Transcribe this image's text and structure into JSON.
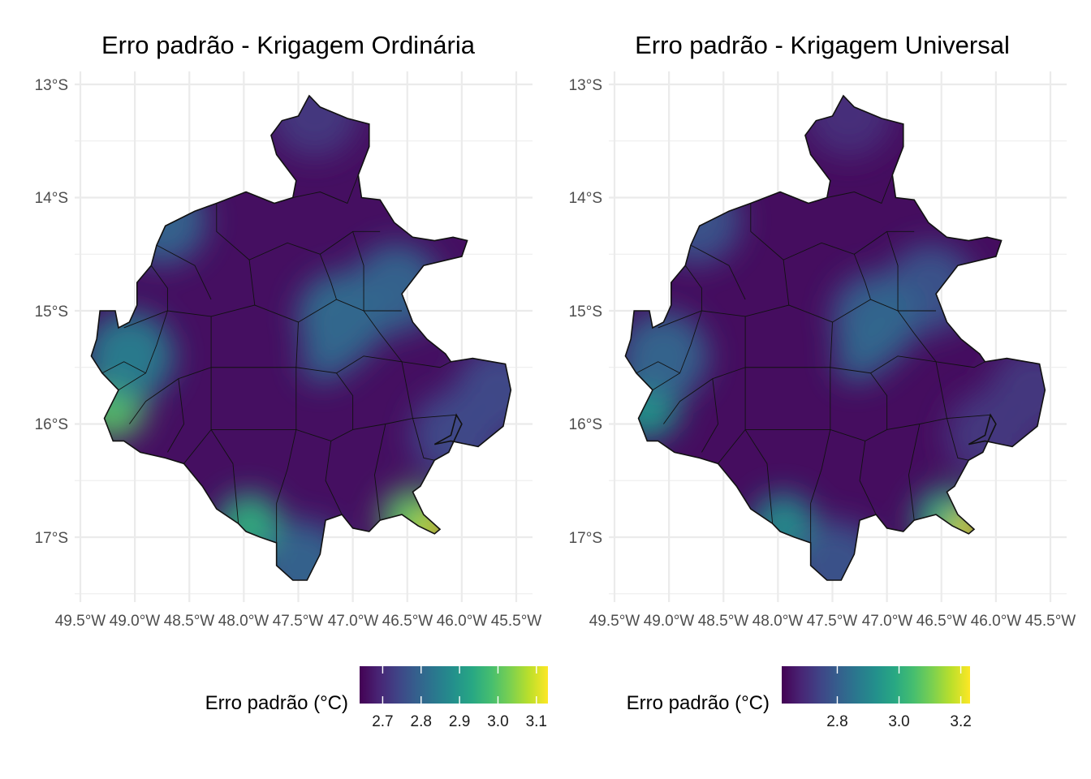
{
  "panels": [
    {
      "title": "Erro padrão - Krigagem Ordinária",
      "legend": {
        "title": "Erro padrão (°C)",
        "breaks": [
          "2.7",
          "2.8",
          "2.9",
          "3.0",
          "3.1"
        ],
        "break_values": [
          2.7,
          2.8,
          2.9,
          3.0,
          3.1
        ],
        "range": [
          2.64,
          3.13
        ]
      },
      "hotspots": [
        {
          "lon": -49.2,
          "lat": -15.85,
          "value": 3.0
        },
        {
          "lon": -49.05,
          "lat": -15.4,
          "value": 2.85
        },
        {
          "lon": -48.75,
          "lat": -14.2,
          "value": 2.8
        },
        {
          "lon": -47.95,
          "lat": -16.9,
          "value": 2.95
        },
        {
          "lon": -47.45,
          "lat": -17.25,
          "value": 2.8
        },
        {
          "lon": -47.1,
          "lat": -15.05,
          "value": 2.82
        },
        {
          "lon": -46.6,
          "lat": -14.8,
          "value": 2.8
        },
        {
          "lon": -46.45,
          "lat": -16.85,
          "value": 3.0
        },
        {
          "lon": -46.25,
          "lat": -16.95,
          "value": 3.1
        },
        {
          "lon": -45.65,
          "lat": -15.7,
          "value": 2.75
        },
        {
          "lon": -46.05,
          "lat": -16.1,
          "value": 2.75
        },
        {
          "lon": -47.35,
          "lat": -13.25,
          "value": 2.72
        }
      ]
    },
    {
      "title": "Erro padrão - Krigagem Universal",
      "legend": {
        "title": "Erro padrão (°C)",
        "breaks": [
          "2.8",
          "3.0",
          "3.2"
        ],
        "break_values": [
          2.8,
          3.0,
          3.2
        ],
        "range": [
          2.62,
          3.23
        ]
      },
      "hotspots": [
        {
          "lon": -49.2,
          "lat": -15.85,
          "value": 2.95
        },
        {
          "lon": -49.05,
          "lat": -15.4,
          "value": 2.82
        },
        {
          "lon": -48.75,
          "lat": -14.2,
          "value": 2.78
        },
        {
          "lon": -47.95,
          "lat": -16.9,
          "value": 2.92
        },
        {
          "lon": -47.45,
          "lat": -17.25,
          "value": 2.78
        },
        {
          "lon": -47.1,
          "lat": -15.05,
          "value": 2.8
        },
        {
          "lon": -46.6,
          "lat": -14.8,
          "value": 2.78
        },
        {
          "lon": -46.45,
          "lat": -16.85,
          "value": 3.0
        },
        {
          "lon": -46.25,
          "lat": -16.95,
          "value": 3.2
        },
        {
          "lon": -45.65,
          "lat": -15.7,
          "value": 2.72
        },
        {
          "lon": -46.05,
          "lat": -16.1,
          "value": 2.72
        },
        {
          "lon": -47.35,
          "lat": -13.25,
          "value": 2.7
        }
      ]
    }
  ],
  "axes": {
    "y_labels": [
      "13°S",
      "14°S",
      "15°S",
      "16°S",
      "17°S"
    ],
    "y_values": [
      -13,
      -14,
      -15,
      -16,
      -17
    ],
    "x_labels": [
      "49.5°W",
      "49.0°W",
      "48.5°W",
      "48.0°W",
      "47.5°W",
      "47.0°W",
      "46.5°W",
      "46.0°W",
      "45.5°W"
    ],
    "x_values": [
      -49.5,
      -49.0,
      -48.5,
      -48.0,
      -47.5,
      -47.0,
      -46.5,
      -46.0,
      -45.5
    ],
    "lon_range": [
      -49.5,
      -45.5
    ],
    "lat_range": [
      -17.5,
      -13.0
    ]
  },
  "region_outline": [
    [
      -47.4,
      -13.1
    ],
    [
      -47.3,
      -13.2
    ],
    [
      -47.05,
      -13.3
    ],
    [
      -46.85,
      -13.35
    ],
    [
      -46.85,
      -13.55
    ],
    [
      -46.95,
      -13.8
    ],
    [
      -46.92,
      -14.0
    ],
    [
      -46.75,
      -14.02
    ],
    [
      -46.62,
      -14.22
    ],
    [
      -46.45,
      -14.35
    ],
    [
      -46.25,
      -14.38
    ],
    [
      -46.08,
      -14.35
    ],
    [
      -45.95,
      -14.38
    ],
    [
      -46.0,
      -14.52
    ],
    [
      -46.35,
      -14.6
    ],
    [
      -46.55,
      -14.85
    ],
    [
      -46.45,
      -15.1
    ],
    [
      -46.32,
      -15.25
    ],
    [
      -46.15,
      -15.38
    ],
    [
      -46.1,
      -15.45
    ],
    [
      -45.9,
      -15.42
    ],
    [
      -45.72,
      -15.45
    ],
    [
      -45.6,
      -15.47
    ],
    [
      -45.55,
      -15.7
    ],
    [
      -45.62,
      -16.02
    ],
    [
      -45.85,
      -16.2
    ],
    [
      -45.95,
      -16.18
    ],
    [
      -46.1,
      -16.15
    ],
    [
      -46.25,
      -16.18
    ],
    [
      -46.1,
      -16.1
    ],
    [
      -46.05,
      -15.92
    ],
    [
      -46.0,
      -16.0
    ],
    [
      -46.12,
      -16.25
    ],
    [
      -46.25,
      -16.32
    ],
    [
      -46.38,
      -16.55
    ],
    [
      -46.45,
      -16.6
    ],
    [
      -46.35,
      -16.8
    ],
    [
      -46.2,
      -16.93
    ],
    [
      -46.25,
      -16.97
    ],
    [
      -46.4,
      -16.9
    ],
    [
      -46.55,
      -16.8
    ],
    [
      -46.75,
      -16.85
    ],
    [
      -46.85,
      -16.95
    ],
    [
      -47.0,
      -16.92
    ],
    [
      -47.1,
      -16.8
    ],
    [
      -47.25,
      -16.85
    ],
    [
      -47.3,
      -17.15
    ],
    [
      -47.42,
      -17.38
    ],
    [
      -47.55,
      -17.38
    ],
    [
      -47.7,
      -17.25
    ],
    [
      -47.7,
      -17.05
    ],
    [
      -47.85,
      -17.0
    ],
    [
      -47.98,
      -16.95
    ],
    [
      -48.05,
      -16.88
    ],
    [
      -48.25,
      -16.75
    ],
    [
      -48.38,
      -16.55
    ],
    [
      -48.55,
      -16.35
    ],
    [
      -48.72,
      -16.3
    ],
    [
      -48.95,
      -16.25
    ],
    [
      -49.1,
      -16.15
    ],
    [
      -49.2,
      -16.15
    ],
    [
      -49.28,
      -15.95
    ],
    [
      -49.15,
      -15.7
    ],
    [
      -49.3,
      -15.55
    ],
    [
      -49.4,
      -15.4
    ],
    [
      -49.35,
      -15.25
    ],
    [
      -49.32,
      -15.0
    ],
    [
      -49.18,
      -15.0
    ],
    [
      -49.15,
      -15.15
    ],
    [
      -49.05,
      -15.1
    ],
    [
      -48.98,
      -14.95
    ],
    [
      -48.98,
      -14.75
    ],
    [
      -48.85,
      -14.6
    ],
    [
      -48.8,
      -14.42
    ],
    [
      -48.72,
      -14.25
    ],
    [
      -48.45,
      -14.12
    ],
    [
      -48.25,
      -14.05
    ],
    [
      -47.98,
      -13.95
    ],
    [
      -47.72,
      -14.05
    ],
    [
      -47.55,
      -14.0
    ],
    [
      -47.52,
      -13.85
    ],
    [
      -47.7,
      -13.62
    ],
    [
      -47.75,
      -13.45
    ],
    [
      -47.65,
      -13.32
    ],
    [
      -47.5,
      -13.28
    ],
    [
      -47.4,
      -13.1
    ]
  ],
  "municipal_lines": [
    [
      [
        -48.3,
        -15.5
      ],
      [
        -47.52,
        -15.5
      ],
      [
        -47.52,
        -16.05
      ],
      [
        -48.3,
        -16.05
      ],
      [
        -48.3,
        -15.5
      ]
    ],
    [
      [
        -49.1,
        -15.15
      ],
      [
        -48.7,
        -15.0
      ],
      [
        -48.3,
        -15.05
      ],
      [
        -47.9,
        -14.95
      ],
      [
        -47.5,
        -15.1
      ],
      [
        -47.15,
        -14.9
      ],
      [
        -46.9,
        -15.0
      ],
      [
        -46.55,
        -15.0
      ]
    ],
    [
      [
        -48.7,
        -15.0
      ],
      [
        -48.8,
        -15.3
      ],
      [
        -48.9,
        -15.55
      ],
      [
        -49.15,
        -15.7
      ]
    ],
    [
      [
        -48.3,
        -15.05
      ],
      [
        -48.3,
        -15.5
      ]
    ],
    [
      [
        -47.5,
        -15.1
      ],
      [
        -47.52,
        -15.5
      ]
    ],
    [
      [
        -47.52,
        -15.5
      ],
      [
        -47.15,
        -15.55
      ],
      [
        -46.9,
        -15.4
      ],
      [
        -46.55,
        -15.45
      ],
      [
        -46.2,
        -15.5
      ],
      [
        -46.1,
        -15.45
      ]
    ],
    [
      [
        -47.52,
        -16.05
      ],
      [
        -47.2,
        -16.15
      ],
      [
        -47.0,
        -16.05
      ],
      [
        -46.7,
        -16.0
      ],
      [
        -46.45,
        -15.95
      ],
      [
        -46.05,
        -15.92
      ]
    ],
    [
      [
        -47.2,
        -16.15
      ],
      [
        -47.25,
        -16.5
      ],
      [
        -47.1,
        -16.8
      ]
    ],
    [
      [
        -47.52,
        -16.05
      ],
      [
        -47.6,
        -16.4
      ],
      [
        -47.7,
        -16.7
      ],
      [
        -47.7,
        -17.05
      ]
    ],
    [
      [
        -48.3,
        -16.05
      ],
      [
        -48.1,
        -16.35
      ],
      [
        -48.05,
        -16.88
      ]
    ],
    [
      [
        -48.3,
        -15.5
      ],
      [
        -48.6,
        -15.6
      ],
      [
        -48.9,
        -15.8
      ],
      [
        -49.05,
        -16.0
      ]
    ],
    [
      [
        -48.3,
        -16.05
      ],
      [
        -48.55,
        -16.35
      ]
    ],
    [
      [
        -48.6,
        -15.6
      ],
      [
        -48.55,
        -16.0
      ],
      [
        -48.7,
        -16.25
      ]
    ],
    [
      [
        -47.9,
        -14.95
      ],
      [
        -47.95,
        -14.55
      ],
      [
        -48.25,
        -14.3
      ],
      [
        -48.25,
        -14.05
      ]
    ],
    [
      [
        -47.95,
        -14.55
      ],
      [
        -47.6,
        -14.4
      ],
      [
        -47.3,
        -14.5
      ],
      [
        -47.0,
        -14.3
      ],
      [
        -46.75,
        -14.3
      ]
    ],
    [
      [
        -47.55,
        -14.0
      ],
      [
        -47.3,
        -13.95
      ],
      [
        -47.05,
        -14.05
      ],
      [
        -46.95,
        -13.8
      ]
    ],
    [
      [
        -47.3,
        -14.5
      ],
      [
        -47.2,
        -14.75
      ],
      [
        -47.15,
        -14.9
      ]
    ],
    [
      [
        -47.0,
        -14.3
      ],
      [
        -46.9,
        -14.6
      ],
      [
        -46.9,
        -15.0
      ]
    ],
    [
      [
        -46.9,
        -15.0
      ],
      [
        -46.75,
        -15.2
      ],
      [
        -46.55,
        -15.45
      ]
    ],
    [
      [
        -46.55,
        -15.45
      ],
      [
        -46.45,
        -15.95
      ]
    ],
    [
      [
        -47.15,
        -15.55
      ],
      [
        -47.0,
        -15.75
      ],
      [
        -47.0,
        -16.05
      ]
    ],
    [
      [
        -46.7,
        -16.0
      ],
      [
        -46.8,
        -16.45
      ],
      [
        -46.75,
        -16.85
      ]
    ],
    [
      [
        -46.45,
        -15.95
      ],
      [
        -46.35,
        -16.3
      ],
      [
        -46.25,
        -16.32
      ]
    ],
    [
      [
        -48.85,
        -14.6
      ],
      [
        -48.7,
        -14.8
      ],
      [
        -48.7,
        -15.0
      ]
    ],
    [
      [
        -48.9,
        -15.55
      ],
      [
        -49.1,
        -15.45
      ],
      [
        -49.3,
        -15.55
      ]
    ],
    [
      [
        -48.3,
        -14.9
      ],
      [
        -48.45,
        -14.6
      ],
      [
        -48.8,
        -14.42
      ]
    ]
  ]
}
